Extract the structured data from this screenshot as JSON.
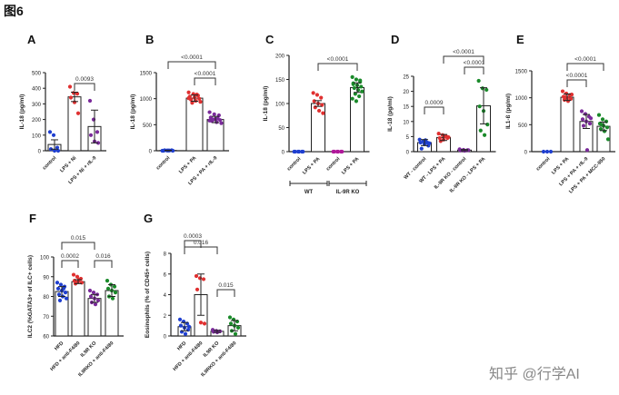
{
  "figure_title": "图6",
  "watermark": "知乎 @行学AI",
  "chart_data": [
    {
      "panel": "A",
      "type": "bar",
      "ylabel": "IL-18 (pg/ml)",
      "ylim": [
        0,
        500
      ],
      "yticks": [
        0,
        100,
        200,
        300,
        400,
        500
      ],
      "categories": [
        "control",
        "LPS + Ni",
        "LPS + Ni + rIL-9"
      ],
      "means": [
        40,
        345,
        155
      ],
      "errors": [
        30,
        30,
        105
      ],
      "colors": [
        "#1f3fd0",
        "#e03030",
        "#7a2a9a"
      ],
      "points": [
        [
          120,
          100,
          20,
          10,
          0,
          0
        ],
        [
          410,
          370,
          365,
          340,
          310,
          240
        ],
        [
          320,
          200,
          120,
          100,
          60,
          50
        ]
      ],
      "brackets": [
        {
          "from": 1,
          "to": 2,
          "label": "0.0093"
        }
      ]
    },
    {
      "panel": "B",
      "type": "bar",
      "ylabel": "IL-18 (pg/ml)",
      "ylim": [
        0,
        1500
      ],
      "yticks": [
        0,
        500,
        1000,
        1500
      ],
      "categories": [
        "control",
        "LPS + PA",
        "LPS + PA + rIL-9"
      ],
      "means": [
        5,
        1010,
        600
      ],
      "errors": [
        5,
        60,
        60
      ],
      "colors": [
        "#1f3fd0",
        "#e03030",
        "#7a2a9a"
      ],
      "points": [
        [
          0,
          5,
          10,
          0,
          5,
          0,
          10,
          5
        ],
        [
          1120,
          1090,
          1060,
          1040,
          1020,
          1000,
          980,
          960,
          940,
          920,
          1080,
          1010
        ],
        [
          740,
          700,
          680,
          640,
          610,
          590,
          570,
          550,
          530,
          600,
          620,
          580
        ]
      ],
      "brackets": [
        {
          "from": 1,
          "to": 2,
          "label": "<0.0001"
        },
        {
          "from": 0,
          "to": 2,
          "label": "<0.0001"
        }
      ]
    },
    {
      "panel": "C",
      "type": "bar",
      "ylabel": "IL-18 (pg/ml)",
      "ylim": [
        0,
        200
      ],
      "yticks": [
        0,
        50,
        100,
        150,
        200
      ],
      "categories": [
        "control",
        "LPS + PA",
        "control",
        "LPS + PA"
      ],
      "groups": [
        {
          "label": "WT",
          "from": 0,
          "to": 1
        },
        {
          "label": "IL-9R KO",
          "from": 2,
          "to": 3
        }
      ],
      "means": [
        0,
        100,
        0,
        133
      ],
      "errors": [
        0,
        6,
        0,
        10
      ],
      "colors": [
        "#1f3fd0",
        "#e03030",
        "#b0189a",
        "#1a8a2a"
      ],
      "points": [
        [
          0,
          0,
          0,
          0,
          0,
          0
        ],
        [
          122,
          118,
          112,
          105,
          100,
          97,
          92,
          85,
          80
        ],
        [
          0,
          0,
          0,
          0,
          0,
          0
        ],
        [
          155,
          150,
          145,
          142,
          138,
          135,
          132,
          128,
          125,
          120,
          115,
          110,
          105,
          148,
          140
        ]
      ],
      "brackets": [
        {
          "from": 1,
          "to": 3,
          "label": "<0.0001"
        }
      ]
    },
    {
      "panel": "D",
      "type": "bar",
      "ylabel": "IL-18 (pg/ml)",
      "ylim": [
        0,
        25
      ],
      "yticks": [
        0,
        5,
        10,
        15,
        20,
        25
      ],
      "categories": [
        "WT - control",
        "WT - LPS + PA",
        "IL-9R KO - control",
        "IL-9R KO - LPS + PA"
      ],
      "means": [
        3,
        4.7,
        0.5,
        15.2
      ],
      "errors": [
        1,
        1,
        0.2,
        6
      ],
      "colors": [
        "#1f3fd0",
        "#e03030",
        "#7a2a9a",
        "#1a8a2a"
      ],
      "points": [
        [
          4,
          3.5,
          3,
          3,
          2.5,
          2,
          1,
          3.8,
          2.8
        ],
        [
          6,
          5.5,
          5,
          4.5,
          4,
          4.5,
          3.5,
          5.2,
          4.8
        ],
        [
          0.8,
          0.6,
          0.5,
          0.4,
          0.3,
          0.5
        ],
        [
          23.5,
          21,
          20.5,
          15,
          13.5,
          9,
          7,
          5.5
        ]
      ],
      "brackets": [
        {
          "from": 0,
          "to": 1,
          "label": "0.0009"
        },
        {
          "from": 2,
          "to": 3,
          "label": "<0.0001"
        },
        {
          "from": 1,
          "to": 3,
          "label": "<0.0001"
        }
      ]
    },
    {
      "panel": "E",
      "type": "bar",
      "ylabel": "IL1-ß (pg/ml)",
      "ylim": [
        0,
        1500
      ],
      "yticks": [
        0,
        500,
        1000,
        1500
      ],
      "categories": [
        "control",
        "LPS + PA",
        "LPS + PA + rIL-9",
        "LPS + PA + MCC-950"
      ],
      "means": [
        0,
        1010,
        560,
        470
      ],
      "errors": [
        0,
        60,
        130,
        80
      ],
      "colors": [
        "#1f3fd0",
        "#e03030",
        "#7a2a9a",
        "#1a8a2a"
      ],
      "points": [
        [
          0,
          0,
          0
        ],
        [
          1120,
          1080,
          1050,
          1020,
          1000,
          980,
          960,
          940,
          1060,
          1010
        ],
        [
          750,
          700,
          650,
          600,
          560,
          520,
          480,
          30,
          620
        ],
        [
          680,
          600,
          560,
          520,
          480,
          450,
          420,
          380,
          230,
          500
        ]
      ],
      "brackets": [
        {
          "from": 1,
          "to": 2,
          "label": "<0.0001"
        },
        {
          "from": 1,
          "to": 3,
          "label": "<0.0001"
        }
      ]
    },
    {
      "panel": "F",
      "type": "bar",
      "ylabel": "ILC2 (%GATA3+ of ILC+ cells)",
      "ylim": [
        60,
        100
      ],
      "yticks": [
        60,
        70,
        80,
        90,
        100
      ],
      "categories": [
        "HFD",
        "HFD + anti-F4/80",
        "IL9R KO",
        "IL9RKO + anti-F4/80"
      ],
      "means": [
        82.5,
        87.5,
        79,
        83
      ],
      "errors": [
        2.5,
        1,
        2,
        3
      ],
      "colors": [
        "#1f3fd0",
        "#e03030",
        "#7a2a9a",
        "#1a8a2a"
      ],
      "points": [
        [
          87,
          86,
          85,
          84,
          83,
          82,
          81,
          80,
          79,
          78,
          84
        ],
        [
          91,
          90,
          89,
          88,
          87.5,
          87,
          86.5,
          88.5
        ],
        [
          83,
          82,
          81,
          80,
          79,
          78,
          77,
          76
        ],
        [
          88,
          86,
          85,
          84,
          83,
          82,
          80,
          79
        ]
      ],
      "brackets": [
        {
          "from": 0,
          "to": 1,
          "label": "0.0002"
        },
        {
          "from": 2,
          "to": 3,
          "label": "0.016"
        },
        {
          "from": 0,
          "to": 2,
          "label": "0.015"
        }
      ]
    },
    {
      "panel": "G",
      "type": "bar",
      "ylabel": "Eosinophils (% of CD45+ cells)",
      "ylim": [
        0,
        8
      ],
      "yticks": [
        0,
        2,
        4,
        6,
        8
      ],
      "categories": [
        "HFD",
        "HFD + anti-F4/80",
        "IL9R KO",
        "IL9RKO + anti-F4/80"
      ],
      "means": [
        0.9,
        4.0,
        0.45,
        1.0
      ],
      "errors": [
        0.4,
        2,
        0.1,
        0.5
      ],
      "colors": [
        "#1f3fd0",
        "#e03030",
        "#7a2a9a",
        "#1a8a2a"
      ],
      "points": [
        [
          1.6,
          1.4,
          1.2,
          1,
          0.8,
          0.6,
          0.4,
          0.2,
          0.9
        ],
        [
          5.8,
          5.6,
          5.5,
          4.5,
          1.3,
          1.2
        ],
        [
          0.6,
          0.5,
          0.45,
          0.4,
          0.35
        ],
        [
          1.8,
          1.6,
          1.4,
          1.2,
          1,
          0.8,
          0.5,
          0.2
        ]
      ],
      "brackets": [
        {
          "from": 0,
          "to": 1,
          "label": "0.0003"
        },
        {
          "from": 2,
          "to": 3,
          "label": "0.015"
        },
        {
          "from": 0,
          "to": 2,
          "label": "0.016"
        }
      ]
    }
  ]
}
